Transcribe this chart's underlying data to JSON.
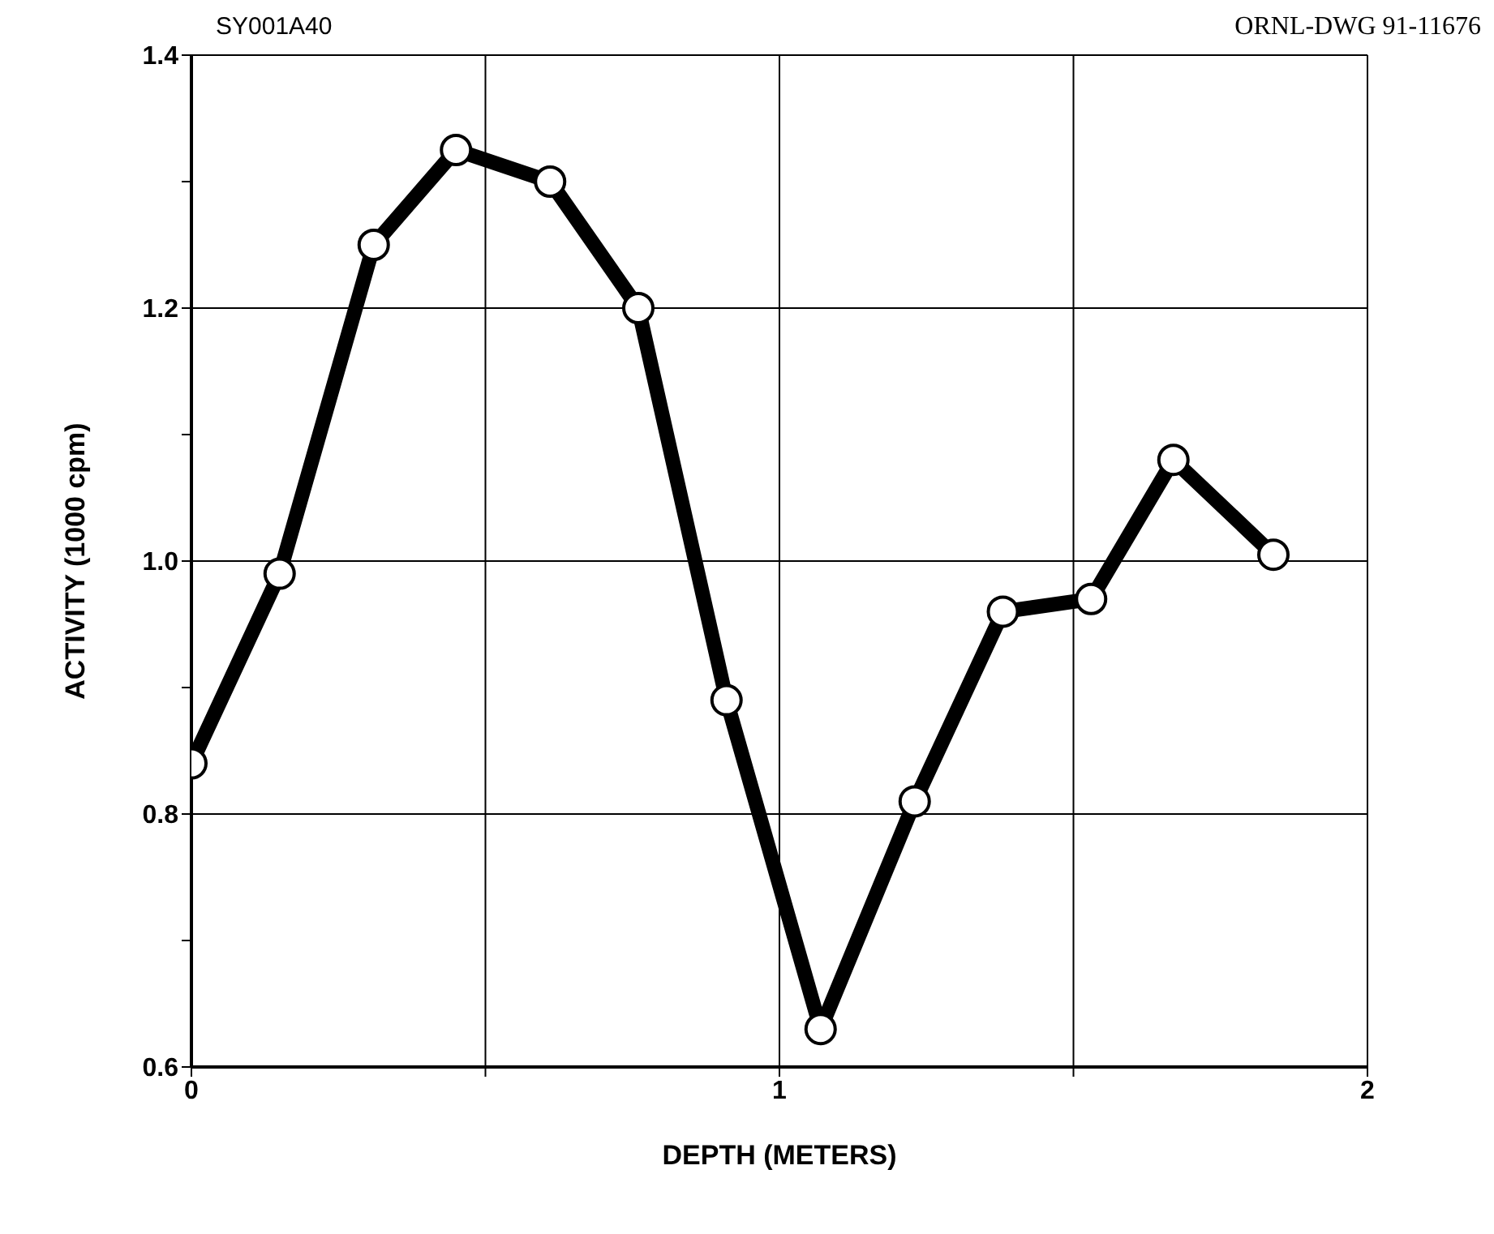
{
  "chart_data": {
    "type": "line",
    "xlabel": "DEPTH (METERS)",
    "ylabel": "ACTIVITY  (1000  cpm)",
    "annotations": [
      "SY001A40",
      "ORNL-DWG 91-11676"
    ],
    "x": [
      0,
      0.15,
      0.31,
      0.45,
      0.61,
      0.76,
      0.91,
      1.07,
      1.23,
      1.38,
      1.53,
      1.67,
      1.84
    ],
    "series": [
      {
        "color": "#000000",
        "values": [
          0.84,
          0.99,
          1.25,
          1.325,
          1.3,
          1.2,
          0.89,
          0.63,
          0.81,
          0.96,
          0.97,
          1.08,
          1.005
        ]
      }
    ],
    "xlim": [
      0,
      2
    ],
    "xticks": [
      0,
      {
        "value": 0.5,
        "label": null
      },
      1,
      {
        "value": 1.5,
        "label": null
      },
      2
    ],
    "ylim": [
      0.6,
      1.4
    ],
    "yticks": [
      {
        "value": 0.6,
        "label": "0.6"
      },
      {
        "value": 0.7,
        "label": null
      },
      {
        "value": 0.8,
        "label": "0.8"
      },
      {
        "value": 0.9,
        "label": null
      },
      {
        "value": 1.0,
        "label": "1.0"
      },
      {
        "value": 1.1,
        "label": null
      },
      {
        "value": 1.2,
        "label": "1.2"
      },
      {
        "value": 1.3,
        "label": null
      },
      {
        "value": 1.4,
        "label": "1.4"
      }
    ],
    "grid": true,
    "marker": "circle",
    "line_style": "solid"
  }
}
